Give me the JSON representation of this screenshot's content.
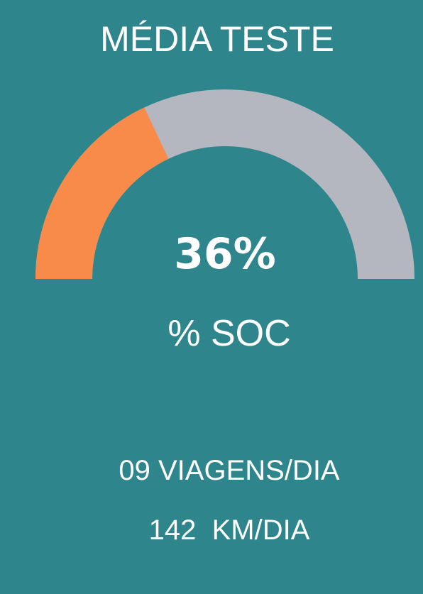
{
  "chart_data": {
    "type": "gauge",
    "title": "MÉDIA TESTE",
    "values": [
      36
    ],
    "value_labels": [
      "36%"
    ],
    "label": "% SOC",
    "ylim": [
      0,
      100
    ],
    "color": "#f98b4a",
    "track_color": "#b4b7bf",
    "background": "#2e858b",
    "annotations": [
      "09 VIAGENS/DIA",
      "142  KM/DIA"
    ]
  }
}
